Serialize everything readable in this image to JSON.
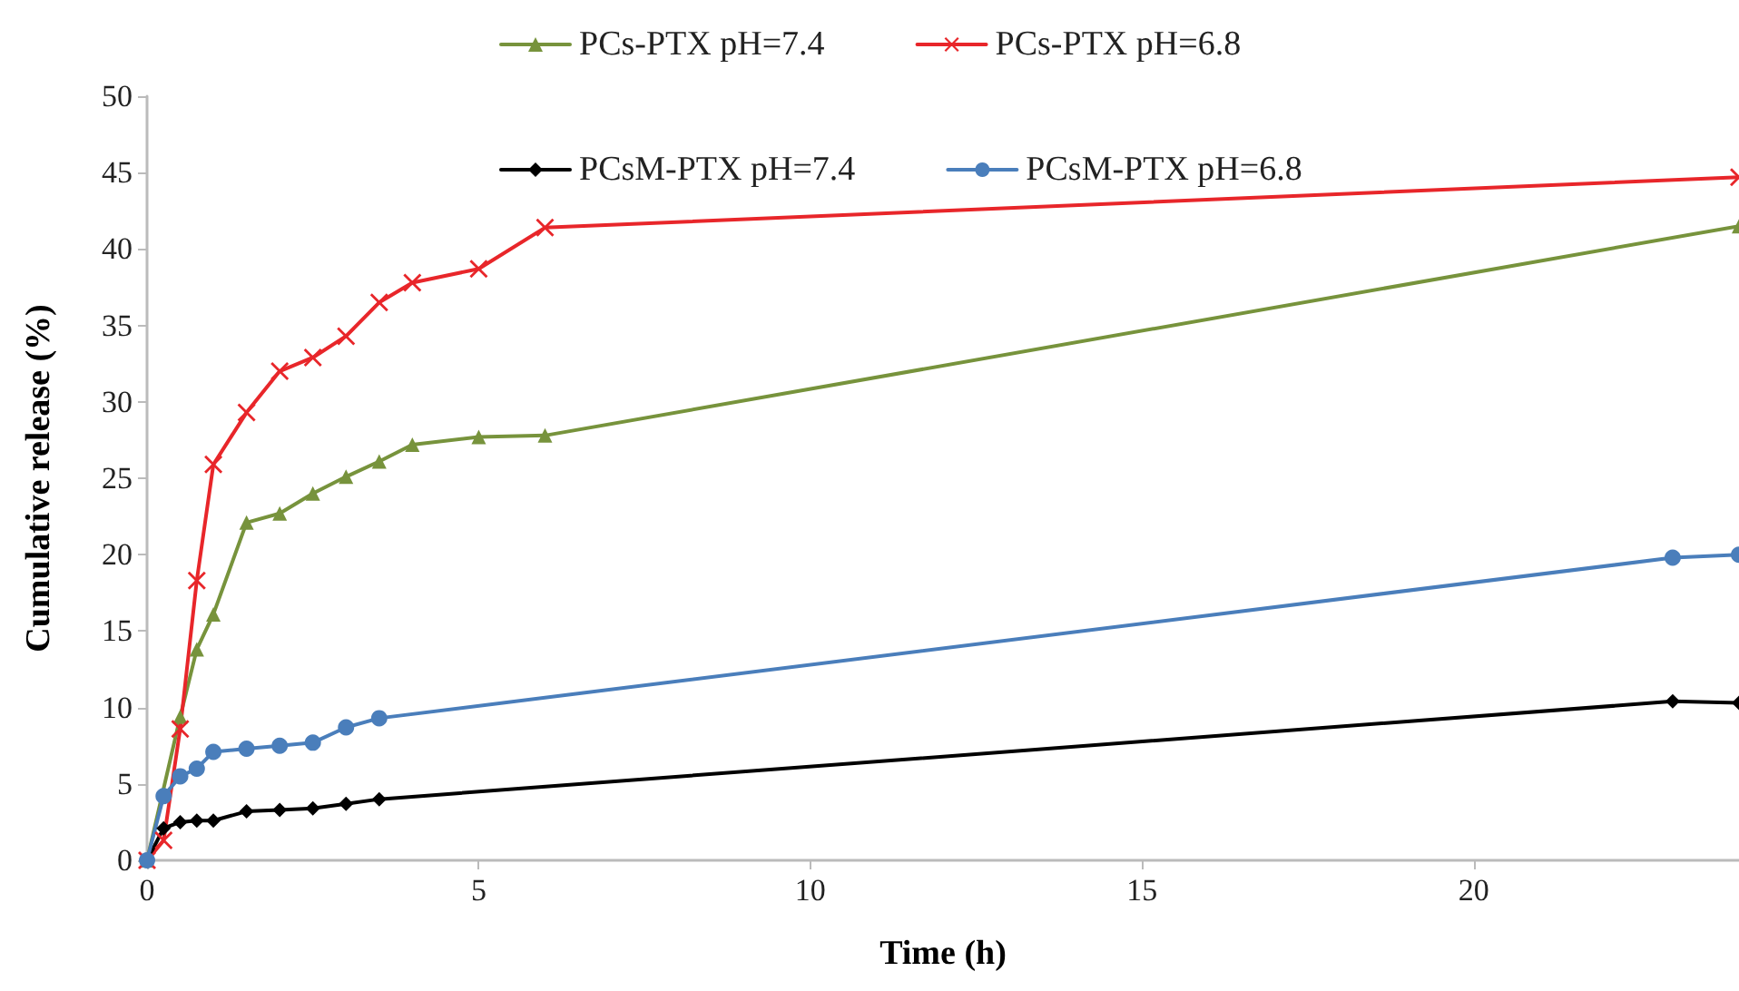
{
  "chart_data": {
    "type": "line",
    "xlabel": "Time (h)",
    "ylabel": "Cumulative release (%)",
    "xlim": [
      0,
      24
    ],
    "xticks": [
      0,
      5,
      10,
      15,
      20
    ],
    "ylim": [
      0,
      50
    ],
    "yticks": [
      0,
      5,
      10,
      15,
      20,
      25,
      30,
      35,
      40,
      45,
      50
    ],
    "grid": false,
    "legend": "top",
    "line_style": "solid",
    "series": [
      {
        "name": "PCs-PTX pH=7.4",
        "color": "#77933c",
        "marker": "triangle",
        "x": [
          0,
          0.5,
          0.75,
          1,
          1.5,
          2,
          2.5,
          3,
          3.5,
          4,
          5,
          6,
          24
        ],
        "values": [
          0,
          9.4,
          13.8,
          16.1,
          22.1,
          22.7,
          24.0,
          25.1,
          26.1,
          27.2,
          27.7,
          27.8,
          41.5
        ]
      },
      {
        "name": "PCs-PTX pH=6.8",
        "color": "#e8262a",
        "marker": "cross",
        "x": [
          0,
          0.25,
          0.5,
          0.75,
          1,
          1.5,
          2,
          2.5,
          3,
          3.5,
          4,
          5,
          6,
          24
        ],
        "values": [
          0,
          1.3,
          8.6,
          18.3,
          25.9,
          29.3,
          32.0,
          32.9,
          34.3,
          36.5,
          37.8,
          38.7,
          41.4,
          44.7
        ]
      },
      {
        "name": "PCsM-PTX pH=7.4",
        "color": "#000000",
        "marker": "diamond",
        "x": [
          0,
          0.25,
          0.5,
          0.75,
          1,
          1.5,
          2,
          2.5,
          3,
          3.5,
          23,
          24
        ],
        "values": [
          0,
          2.1,
          2.5,
          2.6,
          2.6,
          3.2,
          3.3,
          3.4,
          3.7,
          4.0,
          10.4,
          10.3
        ]
      },
      {
        "name": "PCsM-PTX pH=6.8",
        "color": "#4a7ebb",
        "marker": "circle",
        "x": [
          0,
          0.25,
          0.5,
          0.75,
          1,
          1.5,
          2,
          2.5,
          3,
          3.5,
          23,
          24
        ],
        "values": [
          0,
          4.2,
          5.5,
          6.0,
          7.1,
          7.3,
          7.5,
          7.7,
          8.7,
          9.3,
          19.8,
          20.0
        ]
      }
    ]
  }
}
